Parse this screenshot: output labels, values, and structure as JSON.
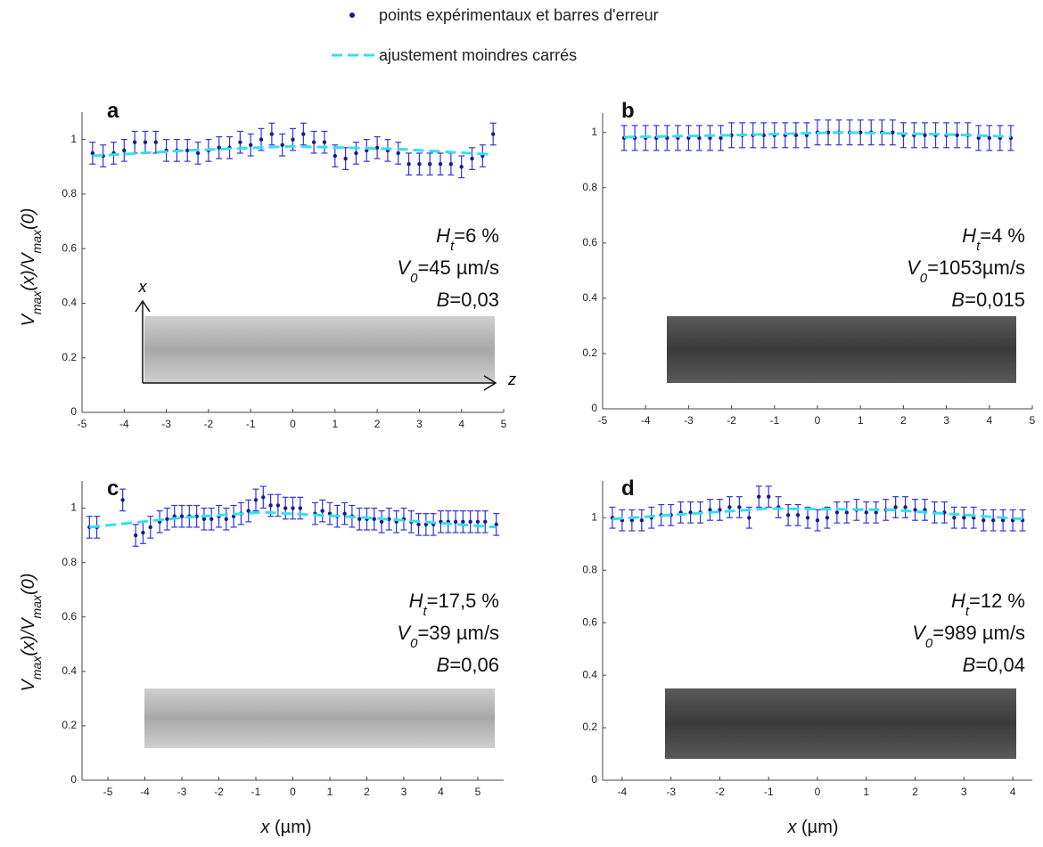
{
  "legend": [
    {
      "name": "points expérimentaux et barres d'erreur",
      "color": "#1a1a8c"
    },
    {
      "name": "ajustement moindres carrés",
      "color": "#33e0f0"
    }
  ],
  "ylabel": [
    {
      "text": "V",
      "italic": true
    },
    {
      "text": "max",
      "sub": true,
      "italic": true
    },
    {
      "text": "(x)/",
      "italic": true
    },
    {
      "text": "V",
      "italic": true
    },
    {
      "text": "max",
      "sub": true,
      "italic": true
    },
    {
      "text": "(0)",
      "italic": true
    }
  ],
  "xlabel": [
    {
      "text": "x",
      "italic": true
    },
    {
      "text": " (µm)"
    }
  ],
  "inset_axes": {
    "vertical": "x",
    "horizontal": "z"
  },
  "chart_data": [
    {
      "type": "errorbar",
      "label": "a",
      "xlim": [
        -5,
        5
      ],
      "ylim": [
        0,
        1.1
      ],
      "xticks": [
        -5,
        -4,
        -3,
        -2,
        -1,
        0,
        1,
        2,
        3,
        4,
        5
      ],
      "yticks": [
        0,
        0.2,
        0.4,
        0.6,
        0.8,
        1
      ],
      "annotation": [
        [
          {
            "text": "H",
            "italic": true
          },
          {
            "text": "t",
            "sub": true,
            "italic": true
          },
          {
            "text": "=6 %"
          }
        ],
        [
          {
            "text": "V",
            "italic": true
          },
          {
            "text": "0",
            "sub": true,
            "italic": true
          },
          {
            "text": "=45 µm/s"
          }
        ],
        [
          {
            "text": "B",
            "italic": true
          },
          {
            "text": "=0,03"
          }
        ]
      ],
      "series": [
        {
          "color": "#3333dd",
          "error": 0.04,
          "x": [
            -4.75,
            -4.5,
            -4.25,
            -4,
            -3.75,
            -3.5,
            -3.25,
            -3,
            -2.75,
            -2.5,
            -2.25,
            -2,
            -1.75,
            -1.5,
            -1.25,
            -1,
            -0.75,
            -0.5,
            -0.25,
            0,
            0.25,
            0.5,
            0.75,
            1,
            1.25,
            1.5,
            1.75,
            2,
            2.25,
            2.5,
            2.75,
            3,
            3.25,
            3.5,
            3.75,
            4,
            4.25,
            4.5,
            4.75
          ],
          "values": [
            0.95,
            0.94,
            0.95,
            0.96,
            0.99,
            0.99,
            0.99,
            0.96,
            0.96,
            0.96,
            0.95,
            0.96,
            0.97,
            0.97,
            0.99,
            0.98,
            1.0,
            1.02,
            0.98,
            1.0,
            1.02,
            0.99,
            0.99,
            0.94,
            0.93,
            0.95,
            0.96,
            0.97,
            0.96,
            0.95,
            0.91,
            0.91,
            0.91,
            0.91,
            0.91,
            0.9,
            0.93,
            0.94,
            1.02
          ]
        },
        {
          "color": "#33e0f0",
          "x": [
            -4.75,
            -2.5,
            0,
            2.5,
            4.75
          ],
          "values": [
            0.94,
            0.96,
            0.975,
            0.965,
            0.945
          ]
        }
      ]
    },
    {
      "type": "errorbar",
      "label": "b",
      "xlim": [
        -5,
        5
      ],
      "ylim": [
        0,
        1.07
      ],
      "xticks": [
        -5,
        -4,
        -3,
        -2,
        -1,
        0,
        1,
        2,
        3,
        4,
        5
      ],
      "yticks": [
        0,
        0.2,
        0.4,
        0.6,
        0.8,
        1
      ],
      "annotation": [
        [
          {
            "text": "H",
            "italic": true
          },
          {
            "text": "t",
            "sub": true,
            "italic": true
          },
          {
            "text": "=4 %"
          }
        ],
        [
          {
            "text": "V",
            "italic": true
          },
          {
            "text": "0",
            "sub": true,
            "italic": true
          },
          {
            "text": "=1053µm/s"
          }
        ],
        [
          {
            "text": "B",
            "italic": true
          },
          {
            "text": "=0,015"
          }
        ]
      ],
      "series": [
        {
          "color": "#3333dd",
          "error": 0.045,
          "x": [
            -4.5,
            -4.25,
            -4,
            -3.75,
            -3.5,
            -3.25,
            -3,
            -2.75,
            -2.5,
            -2.25,
            -2,
            -1.75,
            -1.5,
            -1.25,
            -1,
            -0.75,
            -0.5,
            -0.25,
            0,
            0.25,
            0.5,
            0.75,
            1,
            1.25,
            1.5,
            1.75,
            2,
            2.25,
            2.5,
            2.75,
            3,
            3.25,
            3.5,
            3.75,
            4,
            4.25,
            4.5
          ],
          "values": [
            0.98,
            0.98,
            0.98,
            0.98,
            0.98,
            0.98,
            0.98,
            0.98,
            0.98,
            0.98,
            0.99,
            0.99,
            0.99,
            0.99,
            0.99,
            0.99,
            0.99,
            0.99,
            1.0,
            1.0,
            1.0,
            1.0,
            1.0,
            1.0,
            1.0,
            1.0,
            0.99,
            0.99,
            0.99,
            0.99,
            0.99,
            0.99,
            0.99,
            0.98,
            0.98,
            0.98,
            0.98
          ]
        },
        {
          "color": "#33e0f0",
          "x": [
            -4.5,
            -2,
            0.5,
            3,
            4.5
          ],
          "values": [
            0.983,
            0.99,
            1.0,
            0.993,
            0.985
          ]
        }
      ]
    },
    {
      "type": "errorbar",
      "label": "c",
      "xlim": [
        -5.7,
        5.7
      ],
      "ylim": [
        0,
        1.1
      ],
      "xticks": [
        -5,
        -4,
        -3,
        -2,
        -1,
        0,
        1,
        2,
        3,
        4,
        5
      ],
      "yticks": [
        0,
        0.2,
        0.4,
        0.6,
        0.8,
        1
      ],
      "annotation": [
        [
          {
            "text": "H",
            "italic": true
          },
          {
            "text": "t",
            "sub": true,
            "italic": true
          },
          {
            "text": "=17,5 %"
          }
        ],
        [
          {
            "text": "V",
            "italic": true
          },
          {
            "text": "0",
            "sub": true,
            "italic": true
          },
          {
            "text": "=39 µm/s"
          }
        ],
        [
          {
            "text": "B",
            "italic": true
          },
          {
            "text": "=0,06"
          }
        ]
      ],
      "series": [
        {
          "color": "#3333dd",
          "error": 0.04,
          "x": [
            -5.5,
            -5.3,
            -4.6,
            -4.25,
            -4.05,
            -3.85,
            -3.6,
            -3.4,
            -3.2,
            -3.0,
            -2.8,
            -2.6,
            -2.4,
            -2.2,
            -2.0,
            -1.8,
            -1.6,
            -1.4,
            -1.2,
            -1.0,
            -0.8,
            -0.6,
            -0.4,
            -0.2,
            0,
            0.2,
            0.6,
            0.8,
            1.0,
            1.2,
            1.4,
            1.6,
            1.8,
            2.0,
            2.2,
            2.4,
            2.6,
            2.8,
            3.0,
            3.2,
            3.4,
            3.6,
            3.8,
            4.0,
            4.2,
            4.4,
            4.6,
            4.8,
            5.0,
            5.2,
            5.5
          ],
          "values": [
            0.93,
            0.93,
            1.03,
            0.9,
            0.91,
            0.93,
            0.95,
            0.96,
            0.97,
            0.97,
            0.97,
            0.97,
            0.96,
            0.96,
            0.97,
            0.96,
            0.97,
            0.98,
            0.99,
            1.03,
            1.04,
            1.01,
            1.01,
            1.0,
            1.0,
            1.0,
            0.98,
            0.99,
            0.98,
            0.97,
            0.98,
            0.97,
            0.96,
            0.96,
            0.96,
            0.95,
            0.96,
            0.95,
            0.96,
            0.95,
            0.94,
            0.94,
            0.94,
            0.95,
            0.95,
            0.95,
            0.95,
            0.95,
            0.95,
            0.95,
            0.94
          ]
        },
        {
          "color": "#33e0f0",
          "x": [
            -5.5,
            -3,
            -0.8,
            2,
            5.5
          ],
          "values": [
            0.93,
            0.965,
            0.985,
            0.965,
            0.93
          ]
        }
      ]
    },
    {
      "type": "errorbar",
      "label": "d",
      "xlim": [
        -4.4,
        4.4
      ],
      "ylim": [
        0,
        1.14
      ],
      "xticks": [
        -4,
        -3,
        -2,
        -1,
        0,
        1,
        2,
        3,
        4
      ],
      "yticks": [
        0,
        0.2,
        0.4,
        0.6,
        0.8,
        1
      ],
      "annotation": [
        [
          {
            "text": "H",
            "italic": true
          },
          {
            "text": "t",
            "sub": true,
            "italic": true
          },
          {
            "text": "=12 %"
          }
        ],
        [
          {
            "text": "V",
            "italic": true
          },
          {
            "text": "0",
            "sub": true,
            "italic": true
          },
          {
            "text": "=989 µm/s"
          }
        ],
        [
          {
            "text": "B",
            "italic": true
          },
          {
            "text": "=0,04"
          }
        ]
      ],
      "series": [
        {
          "color": "#3333dd",
          "error": 0.04,
          "x": [
            -4.2,
            -4,
            -3.8,
            -3.6,
            -3.4,
            -3.2,
            -3,
            -2.8,
            -2.6,
            -2.4,
            -2.2,
            -2,
            -1.8,
            -1.6,
            -1.4,
            -1.2,
            -1,
            -0.8,
            -0.6,
            -0.4,
            -0.2,
            0,
            0.2,
            0.4,
            0.6,
            0.8,
            1,
            1.2,
            1.4,
            1.6,
            1.8,
            2,
            2.2,
            2.4,
            2.6,
            2.8,
            3,
            3.2,
            3.4,
            3.6,
            3.8,
            4,
            4.2
          ],
          "values": [
            1.0,
            0.99,
            0.99,
            0.99,
            1.0,
            1.01,
            1.01,
            1.02,
            1.02,
            1.02,
            1.03,
            1.03,
            1.04,
            1.04,
            1.0,
            1.08,
            1.08,
            1.04,
            1.01,
            1.01,
            1.0,
            0.99,
            1.0,
            1.02,
            1.02,
            1.03,
            1.02,
            1.02,
            1.03,
            1.04,
            1.04,
            1.03,
            1.03,
            1.02,
            1.02,
            1.0,
            1.0,
            1.0,
            0.99,
            0.99,
            0.99,
            0.99,
            0.99
          ]
        },
        {
          "color": "#33e0f0",
          "x": [
            -4.2,
            -1,
            1.5,
            4.2
          ],
          "values": [
            0.995,
            1.035,
            1.03,
            0.995
          ]
        }
      ]
    }
  ]
}
